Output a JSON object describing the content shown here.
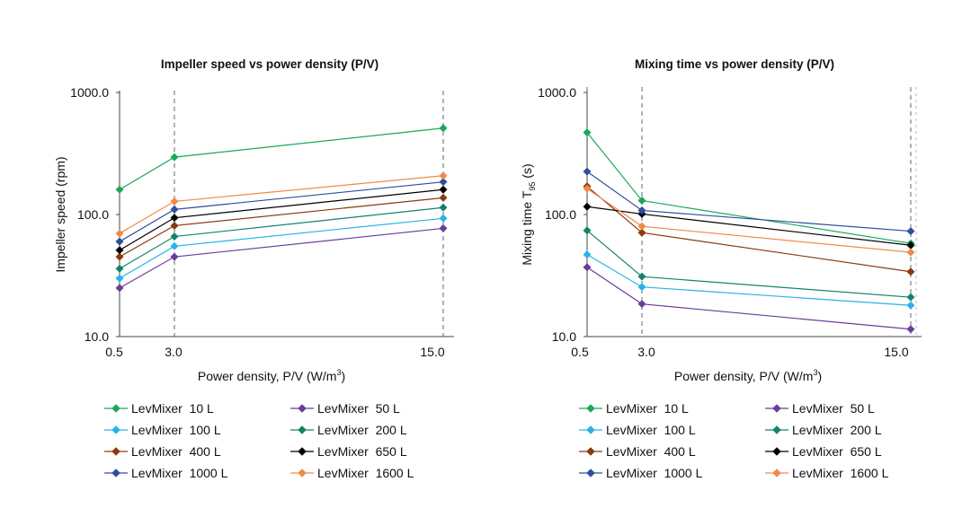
{
  "chart_data": [
    {
      "type": "line",
      "title": "Impeller speed vs power density (P/V)",
      "xlabel": "Power density, P/V (W/m",
      "xlabel_sup": "3",
      "xlabel_suffix": ")",
      "ylabel": "Impeller speed (rpm)",
      "ylabel_sub": "",
      "ylabel_suffix": "",
      "yscale": "log",
      "ylim": [
        10,
        1000
      ],
      "y_ticks": [
        "10.0",
        "100.0",
        "1000.0"
      ],
      "x_ticks": [
        "0.5",
        "3.0",
        "15.0"
      ],
      "x": [
        0.5,
        3.0,
        15.0
      ],
      "grid": "dashed vertical lines at x ticks",
      "series": [
        {
          "name": "LevMixer  10 L",
          "color": "#1aa85a",
          "values": [
            160,
            295,
            510
          ]
        },
        {
          "name": "LevMixer  50 L",
          "color": "#6a3d9a",
          "values": [
            25,
            45,
            77
          ]
        },
        {
          "name": "LevMixer  100 L",
          "color": "#29b3e6",
          "values": [
            30,
            55,
            93
          ]
        },
        {
          "name": "LevMixer  200 L",
          "color": "#15826a",
          "values": [
            36,
            66,
            114
          ]
        },
        {
          "name": "LevMixer  400 L",
          "color": "#8a3a0e",
          "values": [
            45,
            81,
            137
          ]
        },
        {
          "name": "LevMixer  650 L",
          "color": "#000000",
          "values": [
            51,
            94,
            160
          ]
        },
        {
          "name": "LevMixer  1000 L",
          "color": "#2e4f9c",
          "values": [
            60,
            110,
            185
          ]
        },
        {
          "name": "LevMixer  1600 L",
          "color": "#f08a4b",
          "values": [
            70,
            128,
            208
          ]
        }
      ]
    },
    {
      "type": "line",
      "title": "Mixing time vs power density (P/V)",
      "xlabel": "Power density, P/V (W/m",
      "xlabel_sup": "3",
      "xlabel_suffix": ")",
      "ylabel": "Mixing time T",
      "ylabel_sub": "95",
      "ylabel_suffix": " (s)",
      "yscale": "log",
      "ylim": [
        10,
        1000
      ],
      "y_ticks": [
        "10.0",
        "100.0",
        "1000.0"
      ],
      "x_ticks": [
        "0.5",
        "3.0",
        "15.0"
      ],
      "x": [
        0.5,
        3.0,
        15.0
      ],
      "grid": "dashed vertical lines at x ticks",
      "series": [
        {
          "name": "LevMixer  10 L",
          "color": "#1aa85a",
          "values": [
            470,
            130,
            58
          ]
        },
        {
          "name": "LevMixer  50 L",
          "color": "#6a3d9a",
          "values": [
            37,
            18.5,
            11.5
          ]
        },
        {
          "name": "LevMixer  100 L",
          "color": "#29b3e6",
          "values": [
            47,
            25.5,
            18
          ]
        },
        {
          "name": "LevMixer  200 L",
          "color": "#15826a",
          "values": [
            74,
            31,
            21
          ]
        },
        {
          "name": "LevMixer  400 L",
          "color": "#8a3a0e",
          "values": [
            170,
            71,
            34
          ]
        },
        {
          "name": "LevMixer  650 L",
          "color": "#000000",
          "values": [
            116,
            101,
            56
          ]
        },
        {
          "name": "LevMixer  1000 L",
          "color": "#2e4f9c",
          "values": [
            225,
            108,
            73
          ]
        },
        {
          "name": "LevMixer  1600 L",
          "color": "#f08a4b",
          "values": [
            163,
            80,
            49
          ]
        }
      ]
    }
  ]
}
